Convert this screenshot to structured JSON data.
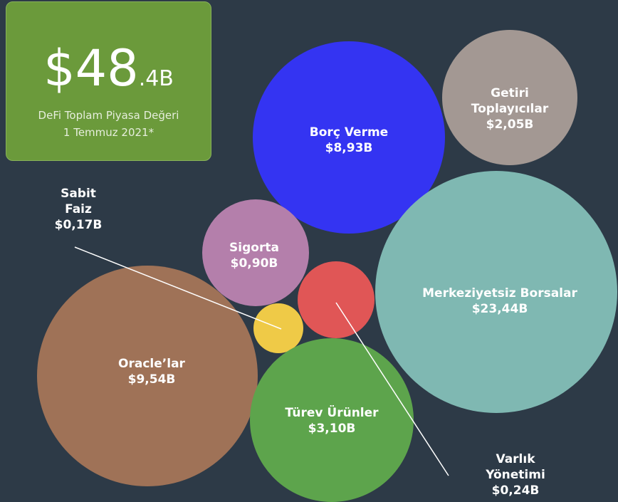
{
  "headline": {
    "main": "$48",
    "decimal": ".4B",
    "caption": [
      "DeFi Toplam Piyasa Değeri",
      "1 Temmuz 2021*"
    ]
  },
  "chart_data": {
    "type": "bubble",
    "categories": [
      "Borç Verme",
      "Getiri Toplayıcılar",
      "Merkeziyetsiz Borsalar",
      "Sigorta",
      "Varlık Yönetimi",
      "Sabit Faiz",
      "Oracle’lar",
      "Türev Ürünler"
    ],
    "values": [
      8.93,
      2.05,
      23.44,
      0.9,
      0.24,
      0.17,
      9.54,
      3.1
    ],
    "value_labels": [
      "$8,93B",
      "$2,05B",
      "$23,44B",
      "$0,90B",
      "$0,24B",
      "$0,17B",
      "$9,54B",
      "$3,10B"
    ],
    "colors": [
      "#3434f2",
      "#a39893",
      "#7fb8b2",
      "#b47fab",
      "#e05656",
      "#efca47",
      "#9f7257",
      "#5da44c"
    ]
  }
}
